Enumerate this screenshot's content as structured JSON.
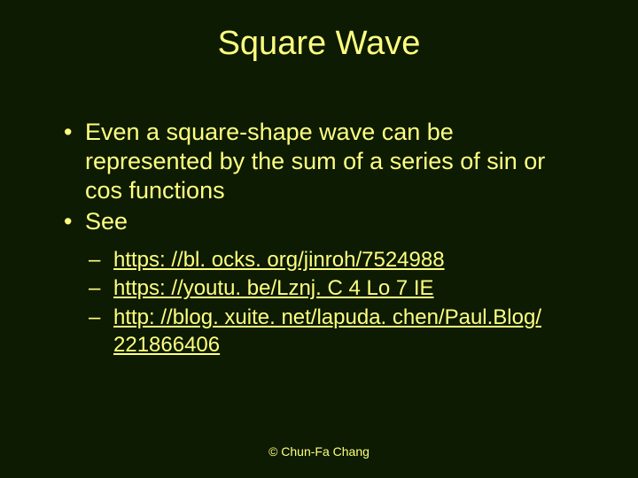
{
  "colors": {
    "background": "#0d1b02",
    "text": "#ffff80",
    "link": "#ffff80",
    "footer": "#ffff80"
  },
  "slide": {
    "title": "Square Wave",
    "bullets": [
      {
        "level": 1,
        "text": "Even a square-shape wave can be represented by the sum of a series of sin or cos functions"
      },
      {
        "level": 1,
        "text": "See"
      },
      {
        "level": 2,
        "link": "https: //bl. ocks. org/jinroh/7524988"
      },
      {
        "level": 2,
        "link": "https: //youtu. be/Lznj. C 4 Lo 7 IE"
      },
      {
        "level": 2,
        "link": "http: //blog. xuite. net/lapuda. chen/Paul.Blog/ 221866406"
      }
    ],
    "footer": "© Chun-Fa Chang"
  }
}
